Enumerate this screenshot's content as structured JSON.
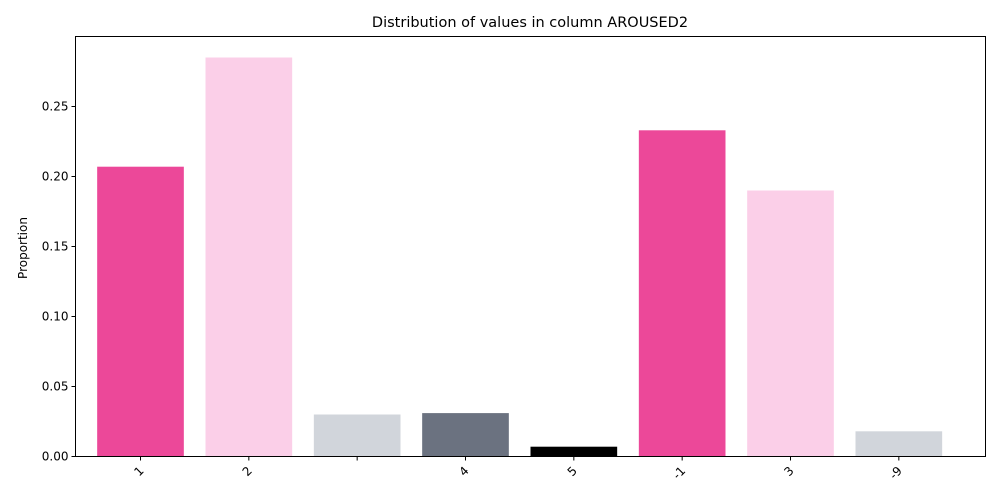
{
  "chart_data": {
    "type": "bar",
    "title": "Distribution of values in column AROUSED2",
    "xlabel": "",
    "ylabel": "Proportion",
    "categories": [
      "1",
      "2",
      "",
      "4",
      "5",
      "-1",
      "3",
      "-9"
    ],
    "values": [
      0.207,
      0.285,
      0.03,
      0.031,
      0.007,
      0.233,
      0.19,
      0.018
    ],
    "colors": [
      "#ec4899",
      "#fbcfe8",
      "#d1d5db",
      "#6b7280",
      "#000000",
      "#ec4899",
      "#fbcfe8",
      "#d1d5db"
    ],
    "ylim": [
      0,
      0.3
    ],
    "yticks": [
      0.0,
      0.05,
      0.1,
      0.15,
      0.2,
      0.25
    ],
    "ytick_labels": [
      "0.00",
      "0.05",
      "0.10",
      "0.15",
      "0.20",
      "0.25"
    ],
    "grid": false,
    "legend": "none"
  }
}
